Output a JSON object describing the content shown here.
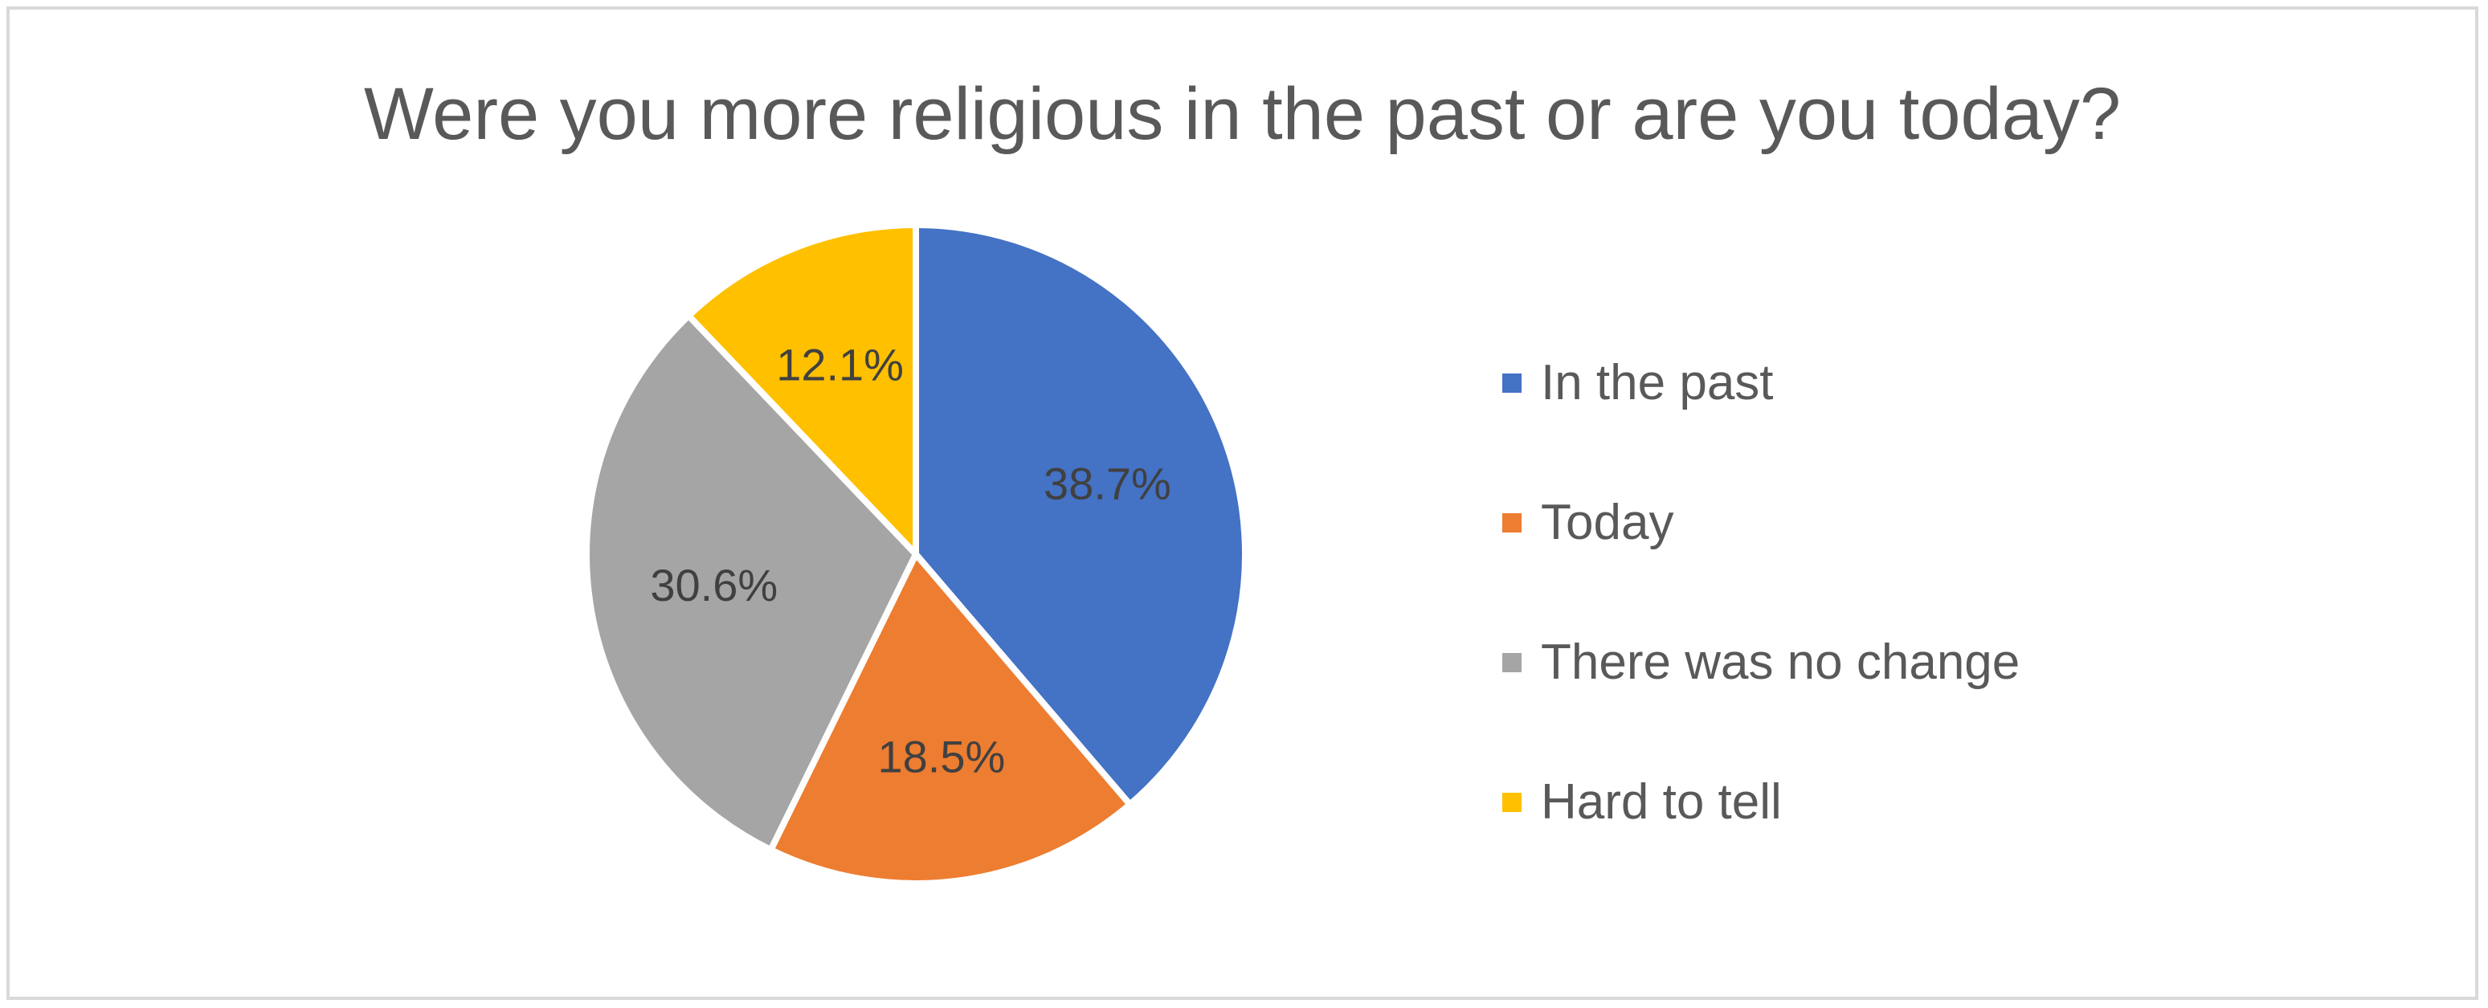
{
  "chart_data": {
    "type": "pie",
    "title": "Were you more religious in the past or are you today?",
    "categories": [
      "In the past",
      "Today",
      "There was no change",
      "Hard to tell"
    ],
    "values": [
      38.7,
      18.5,
      30.6,
      12.1
    ],
    "data_labels": [
      "38.7%",
      "18.5%",
      "30.6%",
      "12.1%"
    ],
    "colors": [
      "#4472C4",
      "#ED7D31",
      "#A5A5A5",
      "#FFC000"
    ],
    "start_angle_deg": 0,
    "direction": "clockwise",
    "legend_position": "right"
  }
}
